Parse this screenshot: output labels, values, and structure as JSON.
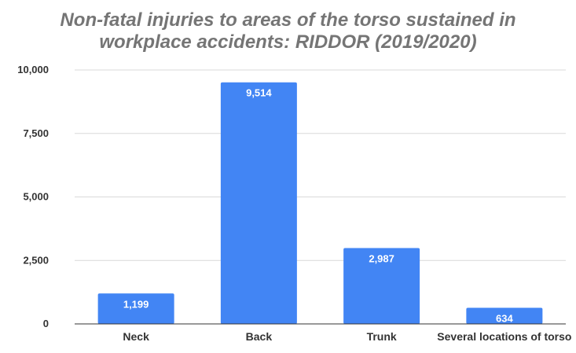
{
  "chart_data": {
    "type": "bar",
    "title_lines": [
      "Non-fatal injuries to areas of the torso sustained in",
      "workplace accidents: RIDDOR (2019/2020)"
    ],
    "categories": [
      "Neck",
      "Back",
      "Trunk",
      "Several locations of torso"
    ],
    "values": [
      1199,
      9514,
      2987,
      634
    ],
    "data_labels": [
      "1,199",
      "9,514",
      "2,987",
      "634"
    ],
    "y_ticks": [
      0,
      2500,
      5000,
      7500,
      10000
    ],
    "y_tick_labels": [
      "0",
      "2,500",
      "5,000",
      "7,500",
      "10,000"
    ],
    "ylim": [
      0,
      10000
    ],
    "grid": true,
    "legend": "none",
    "bar_color": "#4285f4",
    "xlabel": "",
    "ylabel": ""
  }
}
